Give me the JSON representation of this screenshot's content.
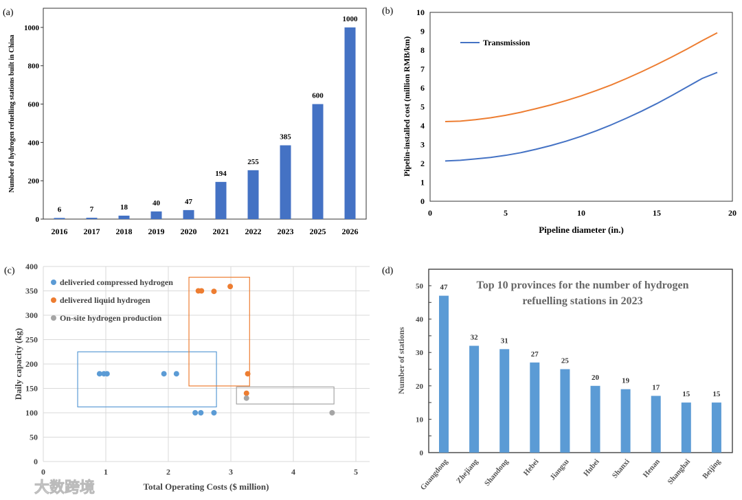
{
  "chart_data": [
    {
      "panel": "(a)",
      "type": "bar",
      "categories": [
        "2016",
        "2017",
        "2018",
        "2019",
        "2020",
        "2021",
        "2022",
        "2023",
        "2025",
        "2026"
      ],
      "values": [
        6,
        7,
        18,
        40,
        47,
        194,
        255,
        385,
        600,
        1000
      ],
      "ylabel": "Number of hydrogen refuelling stations built in China",
      "xlabel": "",
      "ylim": [
        0,
        1100
      ],
      "yticks": [
        0,
        200,
        400,
        600,
        800,
        1000
      ],
      "color": "#4472c4"
    },
    {
      "panel": "(b)",
      "type": "line",
      "xlabel": "Pipeline diameter (in.)",
      "ylabel": "Pipelin-installed cost (million RMB/km)",
      "xlim": [
        0,
        20
      ],
      "ylim": [
        0,
        10
      ],
      "xticks": [
        0,
        5,
        10,
        15,
        20
      ],
      "yticks": [
        0,
        1,
        2,
        3,
        4,
        5,
        6,
        7,
        8,
        9,
        10
      ],
      "legend_position": "top-left",
      "series": [
        {
          "name": "Transmission",
          "color": "#4472c4",
          "x": [
            1,
            2,
            3,
            4,
            5,
            6,
            7,
            8,
            9,
            10,
            11,
            12,
            13,
            14,
            15,
            16,
            17,
            18,
            19
          ],
          "y": [
            2.13,
            2.17,
            2.24,
            2.32,
            2.43,
            2.57,
            2.75,
            2.95,
            3.18,
            3.44,
            3.73,
            4.05,
            4.4,
            4.77,
            5.17,
            5.6,
            6.05,
            6.5,
            6.82
          ]
        },
        {
          "name": "",
          "color": "#ed7d31",
          "x": [
            1,
            2,
            3,
            4,
            5,
            6,
            7,
            8,
            9,
            10,
            11,
            12,
            13,
            14,
            15,
            16,
            17,
            18,
            19
          ],
          "y": [
            4.22,
            4.24,
            4.32,
            4.42,
            4.55,
            4.71,
            4.9,
            5.1,
            5.33,
            5.58,
            5.86,
            6.16,
            6.5,
            6.86,
            7.24,
            7.64,
            8.06,
            8.5,
            8.92
          ]
        }
      ]
    },
    {
      "panel": "(c)",
      "type": "scatter",
      "xlabel": "Total Operating Costs ($ million)",
      "ylabel": "Daily capacity (kg)",
      "xlim": [
        0,
        5
      ],
      "ylim": [
        0,
        400
      ],
      "xticks": [
        0,
        1,
        2,
        3,
        4,
        5
      ],
      "yticks": [
        0,
        50,
        100,
        150,
        200,
        250,
        300,
        350,
        400
      ],
      "grid": true,
      "legend_position": "top-left",
      "series": [
        {
          "name": "deliveried compressed hydrogen",
          "color": "#5b9bd5",
          "x": [
            0.9,
            0.97,
            1.02,
            1.93,
            2.13,
            2.43,
            2.52,
            2.73
          ],
          "y": [
            180,
            180,
            180,
            180,
            180,
            100,
            100,
            100
          ],
          "box": [
            0.55,
            2.77,
            112,
            225
          ]
        },
        {
          "name": "delivered liquid hydrogen",
          "color": "#ed7d31",
          "x": [
            2.48,
            2.53,
            2.73,
            2.99,
            3.27,
            3.25
          ],
          "y": [
            350,
            350,
            349,
            359,
            180,
            140
          ],
          "box": [
            2.33,
            3.3,
            155,
            378
          ]
        },
        {
          "name": "On-site hydrogen production",
          "color": "#a5a5a5",
          "x": [
            3.25,
            4.62
          ],
          "y": [
            130,
            100
          ],
          "box": [
            3.09,
            4.65,
            118,
            153
          ]
        }
      ]
    },
    {
      "panel": "(d)",
      "type": "bar",
      "title": "Top 10 provinces for the number of hydrogen refuelling stations in 2023",
      "title_lines": [
        "Top 10 provinces for the number of hydrogen",
        "refuelling stations in 2023"
      ],
      "categories": [
        "Guangdong",
        "Zhejiang",
        "Shandong",
        "Hebei",
        "Jiangsu",
        "Hubei",
        "Shanxi",
        "Henan",
        "Shanghai",
        "Beijing"
      ],
      "values": [
        47,
        32,
        31,
        27,
        25,
        20,
        19,
        17,
        15,
        15
      ],
      "ylabel": "Number of stations",
      "xlabel": "",
      "ylim": [
        0,
        50
      ],
      "yticks": [
        0,
        10,
        20,
        30,
        40,
        50
      ],
      "color": "#5b9bd5"
    }
  ],
  "watermark": "大数跨境"
}
